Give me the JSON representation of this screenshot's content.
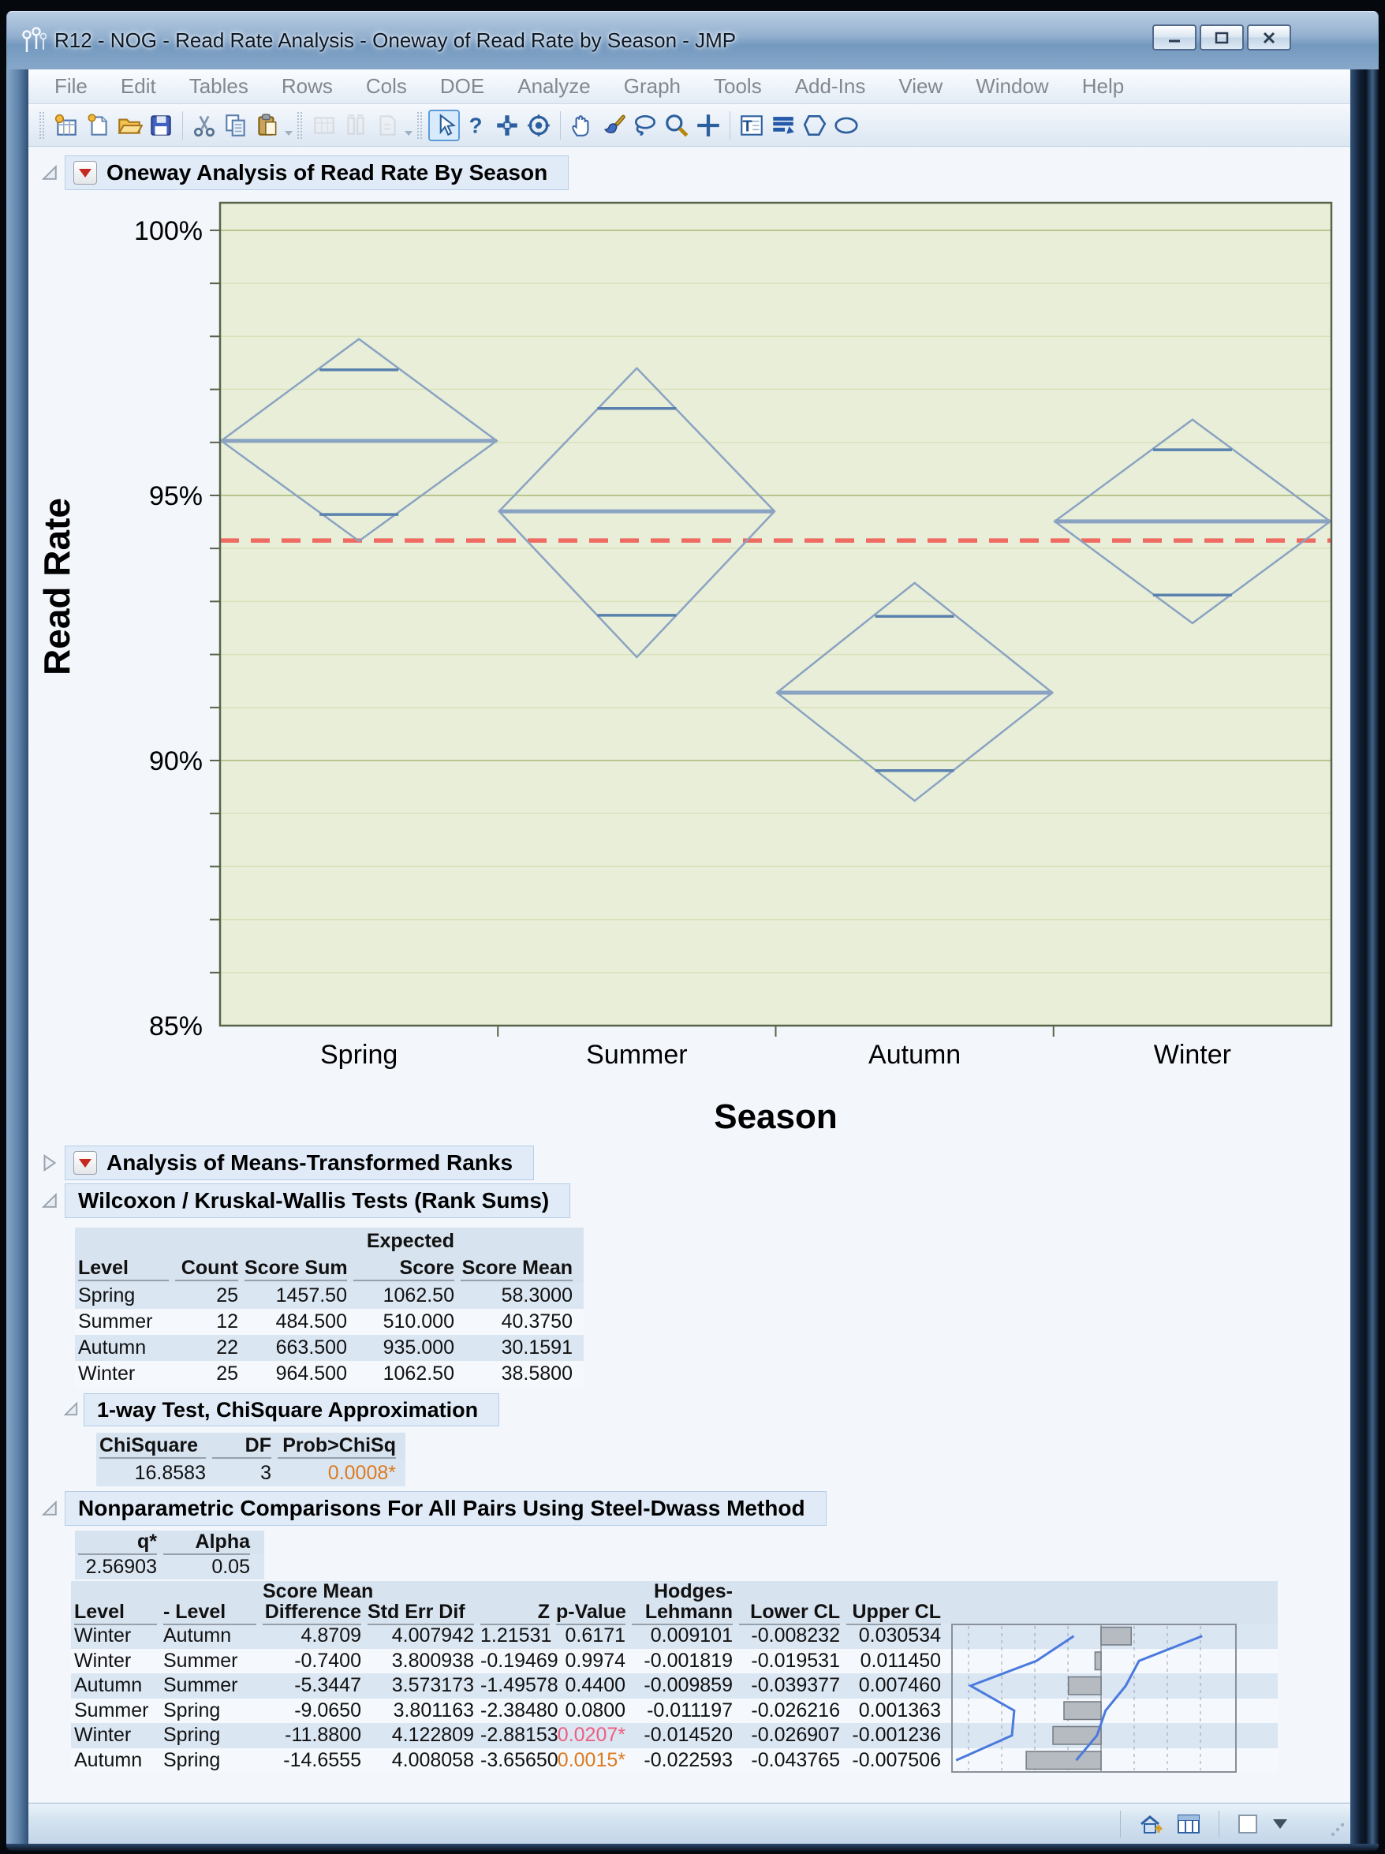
{
  "window": {
    "title": "R12 - NOG - Read Rate Analysis - Oneway of Read Rate by Season - JMP",
    "buttons": [
      "minimize",
      "maximize",
      "close"
    ]
  },
  "menu_bar": [
    "File",
    "Edit",
    "Tables",
    "Rows",
    "Cols",
    "DOE",
    "Analyze",
    "Graph",
    "Tools",
    "Add-Ins",
    "View",
    "Window",
    "Help"
  ],
  "toolbar": {
    "groups": [
      {
        "icons": [
          "new-data-table",
          "new-window",
          "open-folder",
          "save",
          "sep",
          "cut",
          "copy",
          "paste"
        ],
        "overflow": true
      },
      {
        "icons": [
          "grid-disabled",
          "columns-disabled",
          "page-disabled"
        ],
        "overflow": true,
        "disabled": true
      },
      {
        "icons": [
          "arrow-cursor",
          "help-question",
          "move-cross",
          "target-circle",
          "sep",
          "grabber-hand",
          "paint-brush",
          "lasso",
          "magnifier",
          "crosshair-plus",
          "sep",
          "text-annotation",
          "lines-annotation",
          "polygon-annotation",
          "oval-annotation"
        ],
        "selected_first": true
      }
    ]
  },
  "report": {
    "oneway": {
      "title": "Oneway Analysis of Read Rate By Season"
    },
    "chart_data": {
      "type": "oneway-means-diamonds",
      "title": "Oneway Analysis of Read Rate By Season",
      "xlabel": "Season",
      "ylabel": "Read Rate",
      "categories": [
        "Spring",
        "Summer",
        "Autumn",
        "Winter"
      ],
      "counts": [
        25,
        12,
        22,
        25
      ],
      "series": [
        {
          "name": "Mean",
          "values": [
            96.03,
            94.7,
            91.28,
            94.51
          ]
        },
        {
          "name": "95% CI Upper",
          "values": [
            97.95,
            97.4,
            93.35,
            96.43
          ]
        },
        {
          "name": "95% CI Lower",
          "values": [
            94.14,
            91.95,
            89.24,
            92.59
          ]
        },
        {
          "name": "Overlap Upper",
          "values": [
            97.37,
            96.64,
            92.72,
            95.86
          ]
        },
        {
          "name": "Overlap Lower",
          "values": [
            94.64,
            92.74,
            89.81,
            93.12
          ]
        }
      ],
      "grand_mean": 94.15,
      "ylim": [
        85,
        100.52
      ],
      "ytick_values": [
        100,
        95,
        90,
        85
      ],
      "ytick_labels": [
        "100%",
        "95%",
        "90%",
        "85%"
      ],
      "minor_tick_step": 1,
      "grid": true,
      "legend_position": "none"
    },
    "anom": {
      "title": "Analysis of Means-Transformed Ranks"
    },
    "wilcoxon": {
      "title": "Wilcoxon / Kruskal-Wallis Tests (Rank Sums)",
      "columns": {
        "level": "Level",
        "count": "Count",
        "score_sum": "Score Sum",
        "expected_line1": "Expected",
        "expected_line2": "Score",
        "score_mean": "Score Mean"
      },
      "rows": [
        [
          "Spring",
          "25",
          "1457.50",
          "1062.50",
          "58.3000"
        ],
        [
          "Summer",
          "12",
          "484.500",
          "510.000",
          "40.3750"
        ],
        [
          "Autumn",
          "22",
          "663.500",
          "935.000",
          "30.1591"
        ],
        [
          "Winter",
          "25",
          "964.500",
          "1062.50",
          "38.5800"
        ]
      ]
    },
    "chisq": {
      "title": "1-way Test, ChiSquare Approximation",
      "columns": {
        "chisquare": "ChiSquare",
        "df": "DF",
        "prob": "Prob>ChiSq"
      },
      "row": [
        "16.8583",
        "3",
        "0.0008*"
      ],
      "prob_style": "sig-orange"
    },
    "steel": {
      "title": "Nonparametric Comparisons For All Pairs Using Steel-Dwass Method",
      "q_table": {
        "columns": {
          "q": "q*",
          "alpha": "Alpha"
        },
        "row": [
          "2.56903",
          "0.05"
        ]
      },
      "columns": {
        "level": "Level",
        "vs": "- Level",
        "diff_line1": "Score Mean",
        "diff_line2": "Difference",
        "se": "Std Err Dif",
        "z": "Z",
        "p": "p-Value",
        "hl_line1": "Hodges-",
        "hl_line2": "Lehmann",
        "lcl": "Lower CL",
        "ucl": "Upper CL"
      },
      "rows": [
        {
          "cells": [
            "Winter",
            "Autumn",
            "4.8709",
            "4.007942",
            "1.21531",
            "0.6171",
            "0.009101",
            "-0.008232",
            "0.030534"
          ],
          "p_style": ""
        },
        {
          "cells": [
            "Winter",
            "Summer",
            "-0.7400",
            "3.800938",
            "-0.19469",
            "0.9974",
            "-0.001819",
            "-0.019531",
            "0.011450"
          ],
          "p_style": ""
        },
        {
          "cells": [
            "Autumn",
            "Summer",
            "-5.3447",
            "3.573173",
            "-1.49578",
            "0.4400",
            "-0.009859",
            "-0.039377",
            "0.007460"
          ],
          "p_style": ""
        },
        {
          "cells": [
            "Summer",
            "Spring",
            "-9.0650",
            "3.801163",
            "-2.38480",
            "0.0800",
            "-0.011197",
            "-0.026216",
            "0.001363"
          ],
          "p_style": ""
        },
        {
          "cells": [
            "Winter",
            "Spring",
            "-11.8800",
            "4.122809",
            "-2.88153",
            "0.0207*",
            "-0.014520",
            "-0.026907",
            "-0.001236"
          ],
          "p_style": "sig-pink"
        },
        {
          "cells": [
            "Autumn",
            "Spring",
            "-14.6555",
            "4.008058",
            "-3.65650",
            "0.0015*",
            "-0.022593",
            "-0.043765",
            "-0.007506"
          ],
          "p_style": "sig-orange"
        }
      ]
    }
  },
  "status_bar": {
    "icons": [
      "home-window-icon",
      "data-table-icon",
      "checkbox",
      "dropdown-arrow"
    ]
  },
  "colors": {
    "plot_bg": "#e9eed8",
    "grid_minor": "#d9e2ba",
    "grid_major": "#b7c68e",
    "plot_border": "#57644a",
    "diamond": "#8aa3c2",
    "mean_line": "#8aa3c2",
    "overlap_line": "#5a81ad",
    "grand_mean_line": "#ef6a60",
    "sig_orange": "#dd7a1e",
    "sig_pink": "#ee5f7f",
    "header_bg": "#e0ebf7",
    "row_odd": "#dbe6f3",
    "row_even": "#f5f9fd",
    "mini_bar": "#b6bbc1",
    "mini_line": "#4a7ade"
  }
}
